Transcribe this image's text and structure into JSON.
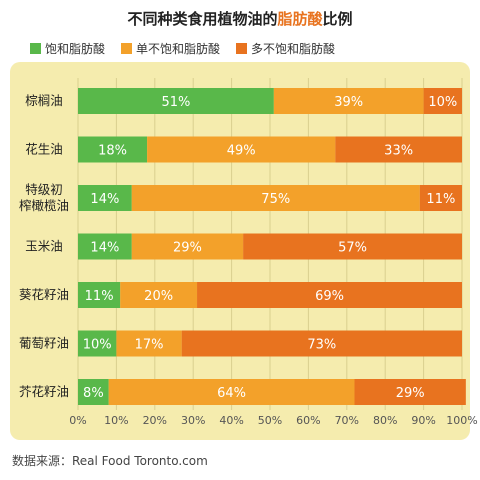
{
  "title": {
    "prefix": "不同种类食用植物油的",
    "highlight": "脂肪酸",
    "suffix": "比例"
  },
  "legend": [
    {
      "label": "饱和脂肪酸",
      "color": "#59b84a"
    },
    {
      "label": "单不饱和脂肪酸",
      "color": "#f3a12a"
    },
    {
      "label": "多不饱和脂肪酸",
      "color": "#e8731f"
    }
  ],
  "source": "数据来源：Real Food Toronto.com",
  "chart_data": {
    "type": "bar",
    "orientation": "horizontal",
    "stacked": true,
    "categories": [
      "棕榈油",
      "花生油",
      "特级初|榨橄榄油",
      "玉米油",
      "葵花籽油",
      "葡萄籽油",
      "芥花籽油"
    ],
    "series": [
      {
        "name": "饱和脂肪酸",
        "values": [
          51,
          18,
          14,
          14,
          11,
          10,
          8
        ]
      },
      {
        "name": "单不饱和脂肪酸",
        "values": [
          39,
          49,
          75,
          29,
          20,
          17,
          64
        ]
      },
      {
        "name": "多不饱和脂肪酸",
        "values": [
          10,
          33,
          11,
          57,
          69,
          73,
          29
        ]
      }
    ],
    "xlim": [
      0,
      100
    ],
    "xticks": [
      "0%",
      "10%",
      "20%",
      "30%",
      "40%",
      "50%",
      "60%",
      "70%",
      "80%",
      "90%",
      "100%"
    ],
    "grid": true,
    "legend_position": "top"
  }
}
